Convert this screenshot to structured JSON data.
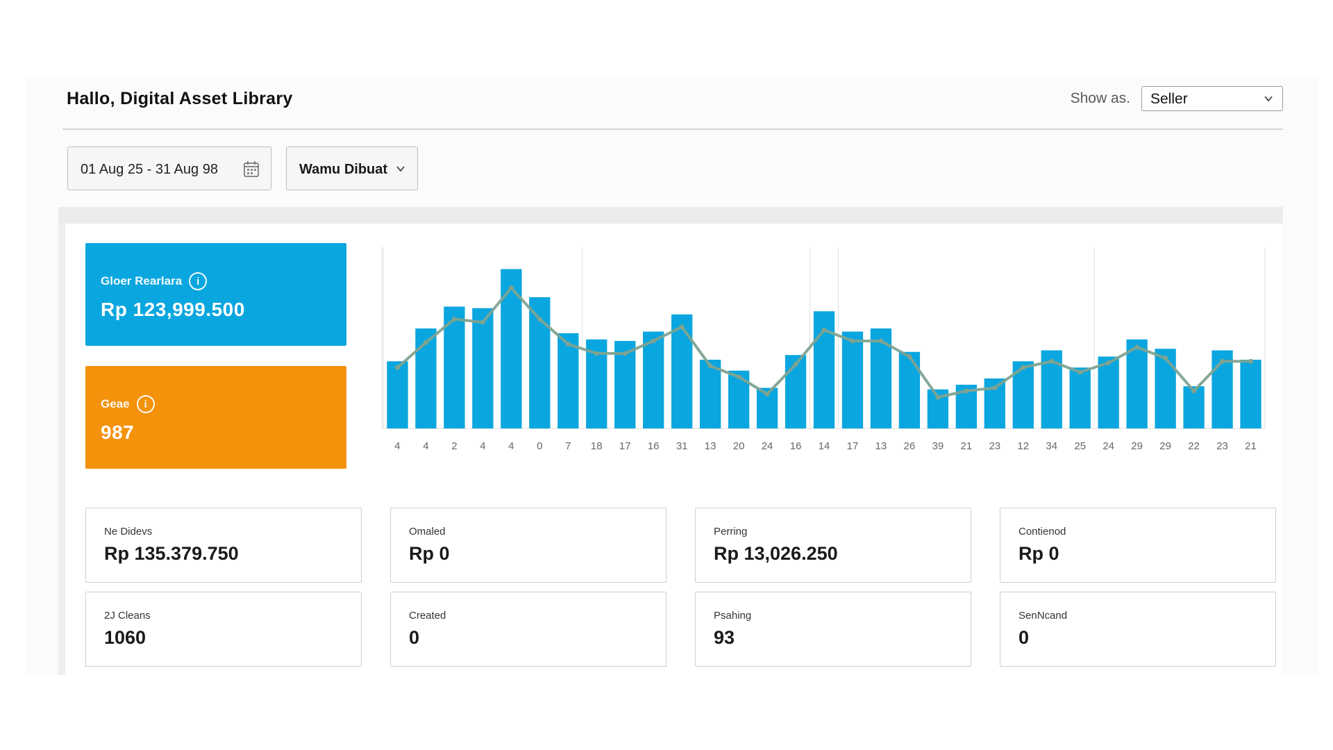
{
  "header": {
    "title": "Hallo, Digital Asset Library",
    "show_label": "Show as.",
    "show_value": "Seller"
  },
  "filters": {
    "date_range": "01  Aug 25 - 31  Aug 98",
    "sort": "Wamu Dibuat"
  },
  "kpis": [
    {
      "label": "Gloer Rearlara",
      "value": "Rp 123,999.500",
      "color": "#0aa6df"
    },
    {
      "label": "Geae",
      "value": "987",
      "color": "#f4920c"
    }
  ],
  "chart_data": {
    "type": "bar",
    "categories": [
      "4",
      "4",
      "2",
      "4",
      "4",
      "0",
      "7",
      "18",
      "17",
      "16",
      "31",
      "13",
      "20",
      "24",
      "16",
      "14",
      "17",
      "13",
      "26",
      "39",
      "21",
      "23",
      "12",
      "34",
      "25",
      "24",
      "29",
      "29",
      "22",
      "23",
      "21"
    ],
    "series": [
      {
        "type": "bar",
        "values": [
          43,
          64,
          78,
          77,
          102,
          84,
          61,
          57,
          56,
          62,
          73,
          44,
          37,
          26,
          47,
          75,
          62,
          64,
          49,
          25,
          28,
          32,
          43,
          50,
          39,
          46,
          57,
          51,
          27,
          50,
          44
        ],
        "color": "#0aa6df"
      },
      {
        "type": "line",
        "values": [
          39,
          55,
          70,
          68,
          90,
          70,
          54,
          48,
          48,
          56,
          65,
          40,
          33,
          22,
          41,
          63,
          56,
          56,
          46,
          20,
          24,
          26,
          39,
          43,
          36,
          42,
          52,
          45,
          24,
          43,
          43
        ],
        "color": "#7fa391"
      }
    ],
    "ylim": [
      0,
      112
    ],
    "grid": "vertical"
  },
  "stats": [
    {
      "label": "Ne Didevs",
      "value": "Rp 135.379.750"
    },
    {
      "label": "Omaled",
      "value": "Rp 0"
    },
    {
      "label": "Perring",
      "value": "Rp 13,026.250"
    },
    {
      "label": "Contienod",
      "value": "Rp 0"
    },
    {
      "label": "2J Cleans",
      "value": "1060"
    },
    {
      "label": "Created",
      "value": "0"
    },
    {
      "label": "Psahing",
      "value": "93"
    },
    {
      "label": "SenNcand",
      "value": "0"
    }
  ]
}
